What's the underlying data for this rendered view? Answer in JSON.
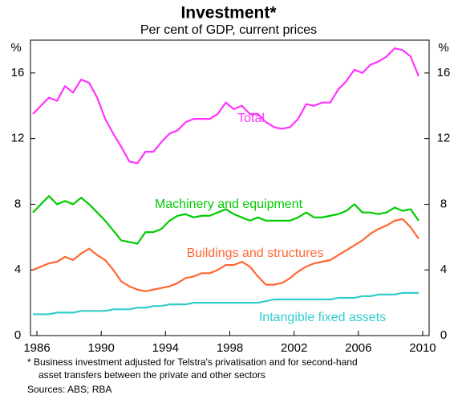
{
  "chart_data": {
    "type": "line",
    "title": "Investment*",
    "subtitle": "Per cent of GDP, current prices",
    "y_label": "%",
    "y2_label": "%",
    "footnote": [
      "*  Business investment adjusted for Telstra's privatisation and for second-hand",
      "asset transfers between the private and other sectors"
    ],
    "source": "Sources: ABS; RBA",
    "xlim": [
      1985.6,
      2010.4
    ],
    "xticks": [
      1986,
      1990,
      1994,
      1998,
      2002,
      2006,
      2010
    ],
    "ylim": [
      0,
      18
    ],
    "yticks": [
      0,
      4,
      8,
      12,
      16
    ],
    "y2lim": [
      0,
      18
    ],
    "y2ticks": [
      0,
      4,
      8,
      12,
      16
    ],
    "grid": false,
    "x": [
      1985.75,
      1986.25,
      1986.75,
      1987.25,
      1987.75,
      1988.25,
      1988.75,
      1989.25,
      1989.75,
      1990.25,
      1990.75,
      1991.25,
      1991.75,
      1992.25,
      1992.75,
      1993.25,
      1993.75,
      1994.25,
      1994.75,
      1995.25,
      1995.75,
      1996.25,
      1996.75,
      1997.25,
      1997.75,
      1998.25,
      1998.75,
      1999.25,
      1999.75,
      2000.25,
      2000.75,
      2001.25,
      2001.75,
      2002.25,
      2002.75,
      2003.25,
      2003.75,
      2004.25,
      2004.75,
      2005.25,
      2005.75,
      2006.25,
      2006.75,
      2007.25,
      2007.75,
      2008.25,
      2008.75,
      2009.25,
      2009.75
    ],
    "series": [
      {
        "name": "Total",
        "color": "#ff33ff",
        "values": [
          13.5,
          14.0,
          14.5,
          14.3,
          15.2,
          14.8,
          15.6,
          15.4,
          14.5,
          13.2,
          12.3,
          11.5,
          10.6,
          10.5,
          11.2,
          11.2,
          11.8,
          12.3,
          12.5,
          13.0,
          13.2,
          13.2,
          13.2,
          13.5,
          14.2,
          13.8,
          14.0,
          13.5,
          13.5,
          13.0,
          12.7,
          12.6,
          12.7,
          13.2,
          14.1,
          14.0,
          14.2,
          14.2,
          15.0,
          15.5,
          16.2,
          16.0,
          16.5,
          16.7,
          17.0,
          17.5,
          17.4,
          17.0,
          15.8
        ]
      },
      {
        "name": "Machinery and equipment",
        "color": "#00cc00",
        "values": [
          7.5,
          8.0,
          8.5,
          8.0,
          8.2,
          8.0,
          8.4,
          8.0,
          7.5,
          7.0,
          6.4,
          5.8,
          5.7,
          5.6,
          6.3,
          6.3,
          6.5,
          7.0,
          7.3,
          7.4,
          7.2,
          7.3,
          7.3,
          7.5,
          7.7,
          7.4,
          7.2,
          7.0,
          7.2,
          7.0,
          7.0,
          7.0,
          7.0,
          7.2,
          7.5,
          7.2,
          7.2,
          7.3,
          7.4,
          7.6,
          8.0,
          7.5,
          7.5,
          7.4,
          7.5,
          7.8,
          7.6,
          7.7,
          7.0
        ]
      },
      {
        "name": "Buildings and structures",
        "color": "#ff6633",
        "values": [
          4.0,
          4.2,
          4.4,
          4.5,
          4.8,
          4.6,
          5.0,
          5.3,
          4.9,
          4.6,
          4.0,
          3.3,
          3.0,
          2.8,
          2.7,
          2.8,
          2.9,
          3.0,
          3.2,
          3.5,
          3.6,
          3.8,
          3.8,
          4.0,
          4.3,
          4.3,
          4.5,
          4.2,
          3.6,
          3.1,
          3.1,
          3.2,
          3.5,
          3.9,
          4.2,
          4.4,
          4.5,
          4.6,
          4.9,
          5.2,
          5.5,
          5.8,
          6.2,
          6.5,
          6.7,
          7.0,
          7.1,
          6.6,
          5.9
        ]
      },
      {
        "name": "Intangible fixed assets",
        "color": "#33cccc",
        "values": [
          1.3,
          1.3,
          1.3,
          1.4,
          1.4,
          1.4,
          1.5,
          1.5,
          1.5,
          1.5,
          1.6,
          1.6,
          1.6,
          1.7,
          1.7,
          1.8,
          1.8,
          1.9,
          1.9,
          1.9,
          2.0,
          2.0,
          2.0,
          2.0,
          2.0,
          2.0,
          2.0,
          2.0,
          2.0,
          2.1,
          2.2,
          2.2,
          2.2,
          2.2,
          2.2,
          2.2,
          2.2,
          2.2,
          2.3,
          2.3,
          2.3,
          2.4,
          2.4,
          2.5,
          2.5,
          2.5,
          2.6,
          2.6,
          2.6
        ]
      }
    ]
  }
}
